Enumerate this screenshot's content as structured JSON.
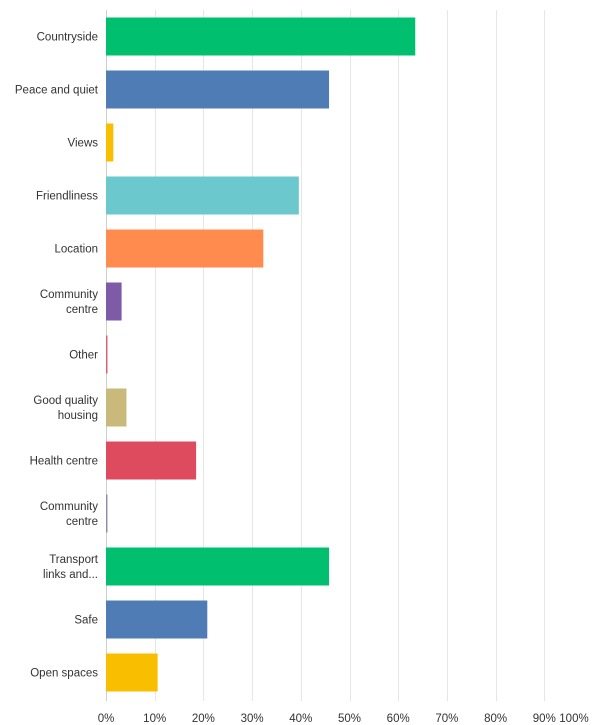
{
  "chart_data": {
    "type": "bar",
    "orientation": "horizontal",
    "categories": [
      [
        "Countryside"
      ],
      [
        "Peace and quiet"
      ],
      [
        "Views"
      ],
      [
        "Friendliness"
      ],
      [
        "Location"
      ],
      [
        "Community",
        "centre"
      ],
      [
        "Other"
      ],
      [
        "Good quality",
        "housing"
      ],
      [
        "Health centre"
      ],
      [
        "Community",
        "centre"
      ],
      [
        "Transport",
        "links and..."
      ],
      [
        "Safe"
      ],
      [
        "Open spaces"
      ]
    ],
    "values": [
      63.5,
      45.8,
      1.5,
      39.6,
      32.3,
      3.2,
      0.3,
      4.2,
      18.5,
      0.3,
      45.8,
      20.8,
      10.6
    ],
    "colors": [
      "#00bf6f",
      "#507cb6",
      "#f9be00",
      "#6bc8cd",
      "#ff8b4f",
      "#7d5ba6",
      "#e05c6e",
      "#c9b97a",
      "#de4b5e",
      "#8e8ea8",
      "#00bf6f",
      "#507cb6",
      "#f9be00"
    ],
    "xlim": [
      0,
      100
    ],
    "x_ticks": [
      "0%",
      "10%",
      "20%",
      "30%",
      "40%",
      "50%",
      "60%",
      "70%",
      "80%",
      "90%",
      "100%"
    ],
    "x_tick_values": [
      0,
      10,
      20,
      30,
      40,
      50,
      60,
      70,
      80,
      90,
      100
    ],
    "grid": true,
    "title": "",
    "xlabel": "",
    "ylabel": ""
  }
}
